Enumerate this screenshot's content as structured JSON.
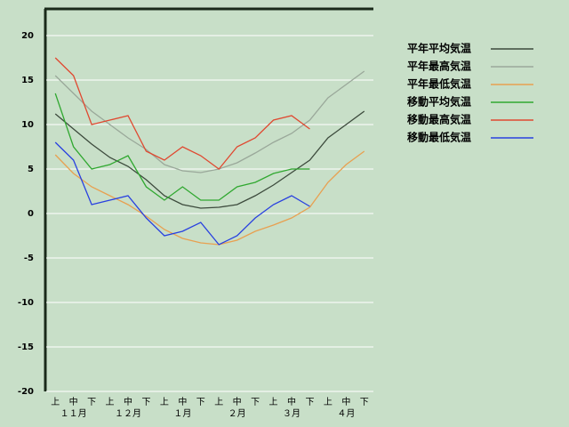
{
  "chart_data": {
    "type": "line",
    "categories": [
      "上",
      "中",
      "下",
      "上",
      "中",
      "下",
      "上",
      "中",
      "下",
      "上",
      "中",
      "下",
      "上",
      "中",
      "下",
      "上",
      "中",
      "下"
    ],
    "months": [
      "１１月",
      "１２月",
      "１月",
      "２月",
      "３月",
      "４月"
    ],
    "ylim": [
      -20,
      23
    ],
    "yticks": [
      -20,
      -15,
      -10,
      -5,
      0,
      5,
      10,
      15,
      20
    ],
    "grid": true,
    "series": [
      {
        "name": "平年平均気温",
        "color": "#3c4a3c",
        "values": [
          11.2,
          9.5,
          7.8,
          6.3,
          5.3,
          3.8,
          2.0,
          1.0,
          0.6,
          0.7,
          1.0,
          2.0,
          3.2,
          4.6,
          6.0,
          8.5,
          10.0,
          11.5
        ]
      },
      {
        "name": "平年最高気温",
        "color": "#9aa89a",
        "values": [
          15.5,
          13.5,
          11.5,
          10.0,
          8.5,
          7.2,
          5.5,
          4.8,
          4.6,
          5.0,
          5.7,
          6.8,
          8.0,
          9.0,
          10.5,
          13.0,
          14.5,
          16.0
        ]
      },
      {
        "name": "平年最低気温",
        "color": "#e8a050",
        "values": [
          6.6,
          4.5,
          3.0,
          2.0,
          1.0,
          -0.3,
          -1.8,
          -2.8,
          -3.3,
          -3.5,
          -3.0,
          -2.0,
          -1.3,
          -0.5,
          0.7,
          3.5,
          5.5,
          7.0
        ]
      },
      {
        "name": "移動平均気温",
        "color": "#30a830",
        "values": [
          13.5,
          7.5,
          5.0,
          5.5,
          6.5,
          3.0,
          1.5,
          3.0,
          1.5,
          1.5,
          3.0,
          3.5,
          4.5,
          5.0,
          5.0,
          null,
          null,
          null
        ]
      },
      {
        "name": "移動最高気温",
        "color": "#e04830",
        "values": [
          17.5,
          15.5,
          10.0,
          10.5,
          11.0,
          7.0,
          6.0,
          7.5,
          6.5,
          5.0,
          7.5,
          8.5,
          10.5,
          11.0,
          9.5,
          null,
          null,
          null
        ]
      },
      {
        "name": "移動最低気温",
        "color": "#2840e0",
        "values": [
          8.0,
          6.0,
          1.0,
          1.5,
          2.0,
          -0.5,
          -2.5,
          -2.0,
          -1.0,
          -3.5,
          -2.5,
          -0.5,
          1.0,
          2.0,
          0.8,
          null,
          null,
          null
        ]
      }
    ]
  }
}
